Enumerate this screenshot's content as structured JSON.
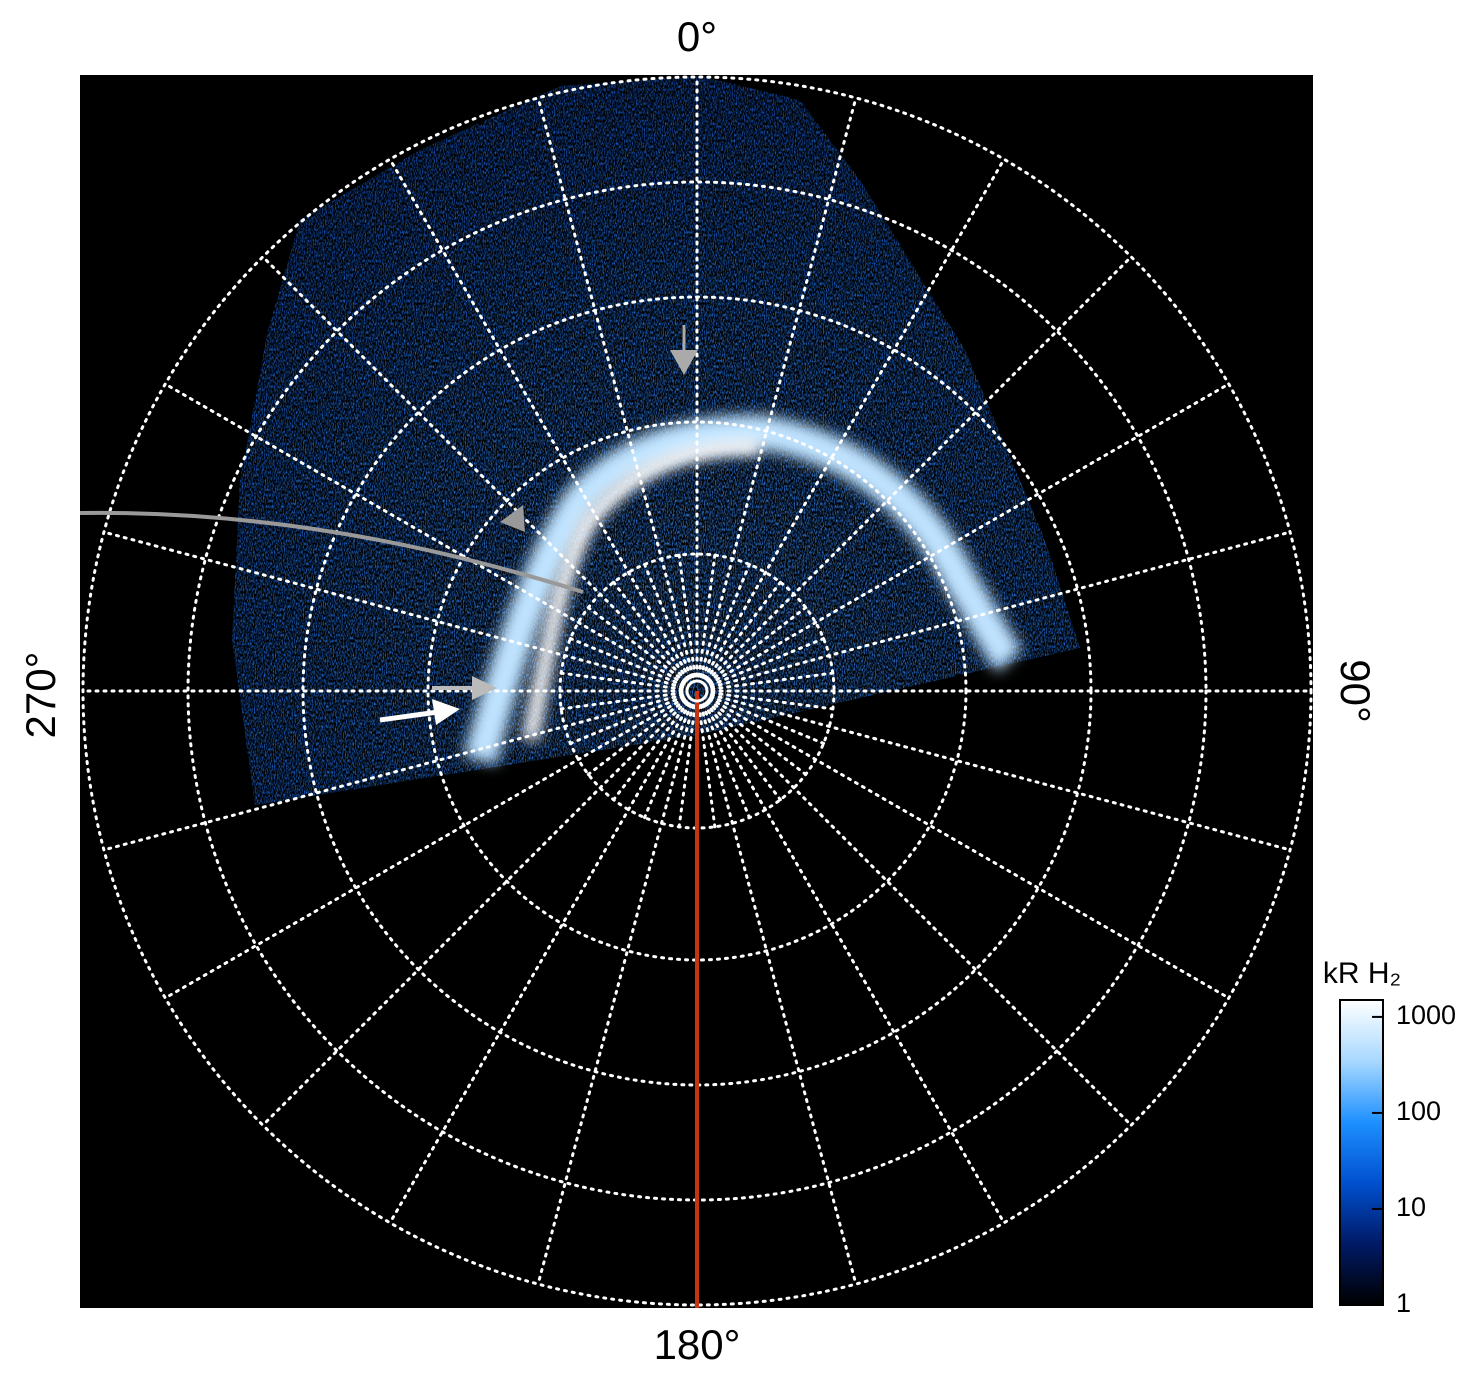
{
  "chart_data": {
    "type": "polar-image",
    "angle_labels": [
      "0°",
      "90°",
      "180°",
      "270°"
    ],
    "colorbar": {
      "title": "kR H₂",
      "log": true,
      "lim": [
        1,
        1500
      ],
      "ticks": [
        1,
        10,
        100,
        1000
      ],
      "colors": [
        "#000000",
        "#001a66",
        "#0050d0",
        "#1e90ff",
        "#a8d8ff",
        "#ffffff"
      ]
    }
  }
}
